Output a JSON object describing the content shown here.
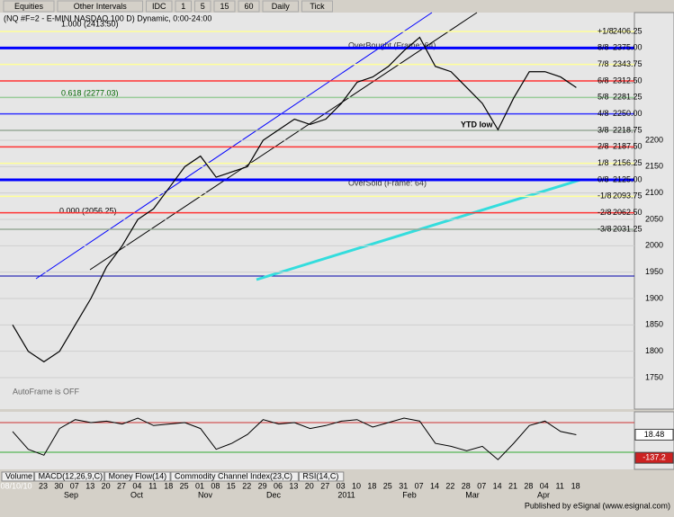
{
  "toolbar": {
    "items": [
      "Equities",
      "Other Intervals",
      "IDC",
      "1",
      "5",
      "15",
      "60",
      "Daily",
      "Tick"
    ]
  },
  "chart": {
    "title": "(NQ #F=2 - E-MINI NASDAQ 100 D) Dynamic, 0:00-24:00",
    "annotations": [
      "1.000 (2413.50)",
      "0.618 (2277.03)",
      "0.000 (2056.25)",
      "OverBought (Frame: 64)",
      "OverSold (Frame: 64)",
      "YTD low",
      "AutoFrame is OFF"
    ],
    "price_ticks": [
      2200,
      2150,
      2100,
      2050,
      2000,
      1950,
      1900,
      1850,
      1800,
      1750
    ],
    "murrey": [
      {
        "label": "+1/8",
        "price": {
          "value": 2406.25,
          "label": "2406.25"
        },
        "color": "#ffff99"
      },
      {
        "label": "8/8",
        "price": {
          "value": 2375,
          "label": "2375.00"
        },
        "color": "#0000ff"
      },
      {
        "label": "7/8",
        "price": {
          "value": 2343.75,
          "label": "2343.75"
        },
        "color": "#ffff99"
      },
      {
        "label": "6/8",
        "price": {
          "value": 2312.5,
          "label": "2312.50"
        },
        "color": "#ff3333"
      },
      {
        "label": "5/8",
        "price": {
          "value": 2281.25,
          "label": "2281.25"
        },
        "color": "#99cc99"
      },
      {
        "label": "4/8",
        "price": {
          "value": 2250,
          "label": "2250.00"
        },
        "color": "#3333ff"
      },
      {
        "label": "3/8",
        "price": {
          "value": 2218.75,
          "label": "2218.75"
        },
        "color": "#99aa99"
      },
      {
        "label": "2/8",
        "price": {
          "value": 2187.5,
          "label": "2187.50"
        },
        "color": "#ff3333"
      },
      {
        "label": "1/8",
        "price": {
          "value": 2156.25,
          "label": "2156.25"
        },
        "color": "#ffff99"
      },
      {
        "label": "0/8",
        "price": {
          "value": 2125,
          "label": "2125.00"
        },
        "color": "#0000ff"
      },
      {
        "label": "-1/8",
        "price": {
          "value": 2093.75,
          "label": "2093.75"
        },
        "color": "#ffff99"
      },
      {
        "label": "-2/8",
        "price": {
          "value": 2062.5,
          "label": "2062.50"
        },
        "color": "#ff3333"
      },
      {
        "label": "-3/8",
        "price": {
          "value": 2031.25,
          "label": "2031.25"
        },
        "color": "#99aa99"
      }
    ],
    "closes": [
      1850,
      1800,
      1780,
      1800,
      1850,
      1900,
      1960,
      2000,
      2050,
      2070,
      2110,
      2150,
      2170,
      2130,
      2140,
      2150,
      2200,
      2220,
      2240,
      2230,
      2240,
      2270,
      2310,
      2320,
      2340,
      2370,
      2395,
      2340,
      2330,
      2300,
      2270,
      2220,
      2280,
      2330,
      2330,
      2320,
      2300
    ],
    "indicator": {
      "values": [
        40,
        -80,
        -120,
        60,
        120,
        100,
        110,
        90,
        130,
        80,
        90,
        100,
        60,
        -80,
        -40,
        20,
        120,
        90,
        100,
        60,
        80,
        110,
        120,
        70,
        100,
        130,
        110,
        -40,
        -60,
        -90,
        -60,
        -150,
        -40,
        80,
        110,
        40,
        18.48
      ],
      "labels": [
        {
          "value": 18.48,
          "label": "18.48"
        },
        {
          "value": -137.2,
          "label": "-137.2"
        }
      ]
    },
    "tabs": [
      "Volume",
      "MACD(12,26,9,C)",
      "Money Flow(14)",
      "Commodity Channel Index(23,C)",
      "RSI(14,C)"
    ],
    "dates": [
      "08/10/10",
      "23",
      "30",
      "07",
      "13",
      "20",
      "27",
      "04",
      "11",
      "18",
      "25",
      "01",
      "08",
      "15",
      "22",
      "29",
      "06",
      "13",
      "20",
      "27",
      "03",
      "10",
      "18",
      "25",
      "31",
      "07",
      "14",
      "22",
      "28",
      "07",
      "14",
      "21",
      "28",
      "04",
      "11",
      "18"
    ],
    "months": [
      "Sep",
      "Oct",
      "Nov",
      "Dec",
      "2011",
      "Feb",
      "Mar",
      "Apr"
    ]
  },
  "footer": "Published by eSignal (www.esignal.com)"
}
